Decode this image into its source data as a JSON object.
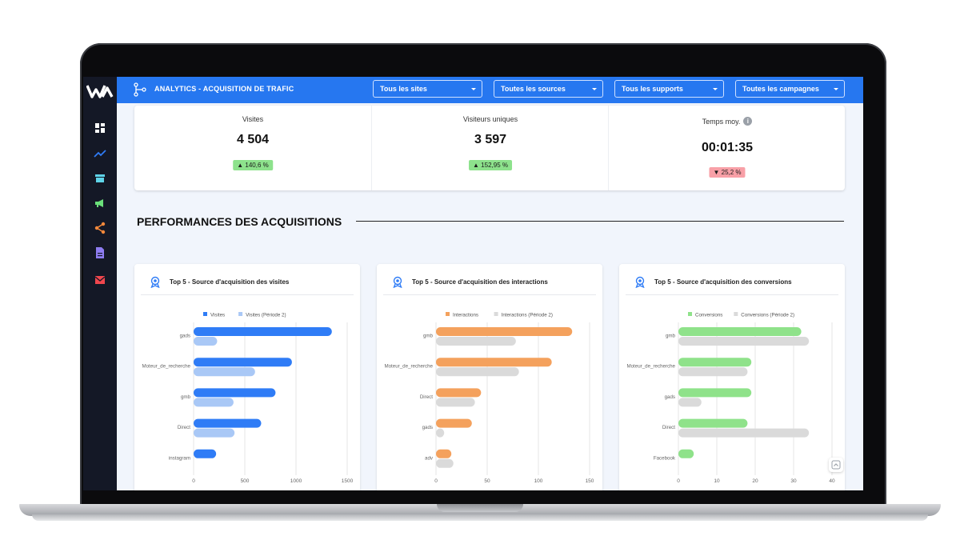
{
  "header": {
    "title": "ANALYTICS - ACQUISITION DE TRAFIC",
    "filters": [
      {
        "label": "Tous les sites"
      },
      {
        "label": "Toutes les sources"
      },
      {
        "label": "Tous les supports"
      },
      {
        "label": "Toutes les campagnes"
      }
    ]
  },
  "sidebar": {
    "items": [
      {
        "icon": "dashboard-icon",
        "color": "#ffffff"
      },
      {
        "icon": "trending-icon",
        "color": "#2f7cf6"
      },
      {
        "icon": "store-icon",
        "color": "#5fd3e8"
      },
      {
        "icon": "megaphone-icon",
        "color": "#6be07a"
      },
      {
        "icon": "share-icon",
        "color": "#f7893b"
      },
      {
        "icon": "document-icon",
        "color": "#8e7cf0"
      },
      {
        "icon": "mail-icon",
        "color": "#f0464d"
      }
    ]
  },
  "kpis": [
    {
      "label": "Visites",
      "value": "4 504",
      "delta": "140,6 %",
      "trend": "up"
    },
    {
      "label": "Visiteurs uniques",
      "value": "3 597",
      "delta": "152,95 %",
      "trend": "up"
    },
    {
      "label": "Temps moy.",
      "value": "00:01:35",
      "delta": "25,2 %",
      "trend": "down"
    }
  ],
  "section": {
    "title": "PERFORMANCES DES ACQUISITIONS"
  },
  "chart_data": [
    {
      "type": "bar",
      "orientation": "horizontal",
      "title": "Top 5 - Source d'acquisition des visites",
      "categories": [
        "gads",
        "Moteur_de_recherche",
        "gmb",
        "Direct",
        "instagram"
      ],
      "series": [
        {
          "name": "Visites",
          "color": "#2f7cf6",
          "values": [
            1350,
            960,
            800,
            660,
            220
          ]
        },
        {
          "name": "Visites (Période 2)",
          "color": "#a9c8f6",
          "values": [
            230,
            600,
            390,
            400,
            null
          ]
        }
      ],
      "xlim": [
        0,
        1500
      ],
      "xticks": [
        0,
        500,
        1000,
        1500
      ],
      "grid": true,
      "legend": "top"
    },
    {
      "type": "bar",
      "orientation": "horizontal",
      "title": "Top 5 - Source d'acquisition des interactions",
      "categories": [
        "gmb",
        "Moteur_de_recherche",
        "Direct",
        "gads",
        "adv"
      ],
      "series": [
        {
          "name": "Interactions",
          "color": "#f4a15d",
          "values": [
            133,
            113,
            44,
            35,
            15
          ]
        },
        {
          "name": "Interactions (Période 2)",
          "color": "#dadada",
          "values": [
            78,
            81,
            38,
            8,
            17
          ]
        }
      ],
      "xlim": [
        0,
        150
      ],
      "xticks": [
        0,
        50,
        100,
        150
      ],
      "grid": true,
      "legend": "top"
    },
    {
      "type": "bar",
      "orientation": "horizontal",
      "title": "Top 5 - Source d'acquisition des conversions",
      "categories": [
        "gmb",
        "Moteur_de_recherche",
        "gads",
        "Direct",
        "Facebook"
      ],
      "series": [
        {
          "name": "Conversions",
          "color": "#8fe28a",
          "values": [
            32,
            19,
            19,
            18,
            4
          ]
        },
        {
          "name": "Conversions (Période 2)",
          "color": "#dadada",
          "values": [
            34,
            18,
            6,
            34,
            null
          ]
        }
      ],
      "xlim": [
        0,
        40
      ],
      "xticks": [
        0,
        10,
        20,
        30,
        40
      ],
      "grid": true,
      "legend": "top"
    }
  ]
}
